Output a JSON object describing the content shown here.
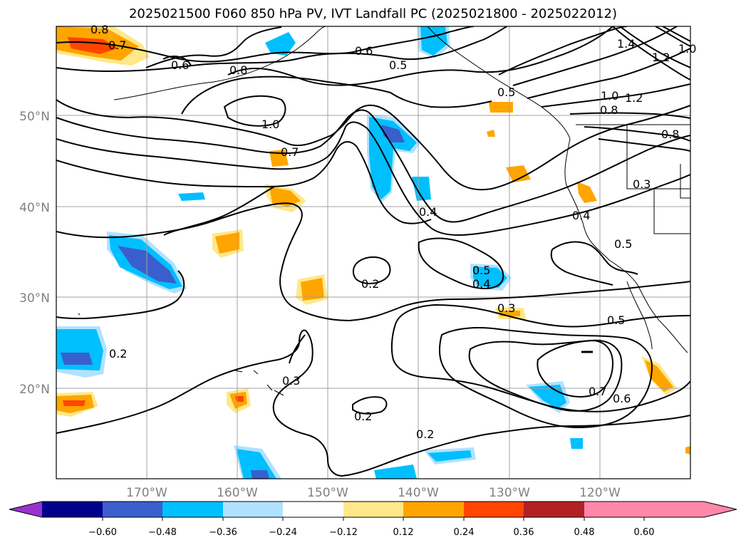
{
  "title": "2025021500 F060 850 hPa PV, IVT Landfall PC (2025021800 - 2025022012)",
  "map": {
    "latitude_ticks": [
      "50°N",
      "40°N",
      "30°N",
      "20°N"
    ],
    "longitude_ticks": [
      "170°W",
      "160°W",
      "150°W",
      "140°W",
      "130°W",
      "120°W"
    ],
    "gridlines": true,
    "coastlines": true
  },
  "contour_labels": [
    "0.8",
    "0.7",
    "0.6",
    "0.8",
    "0.6",
    "0.5",
    "1.0",
    "0.7",
    "1.0",
    "0.8",
    "1.4",
    "1.2",
    "1.0",
    "1.2",
    "0.8",
    "0.5",
    "0.3",
    "0.4",
    "0.5",
    "0.4",
    "0.5",
    "0.4",
    "0.2",
    "0.3",
    "0.5",
    "0.2",
    "0.3",
    "0.2",
    "0.2",
    "0.7",
    "0.6"
  ],
  "colorbar": {
    "ticks": [
      "−0.60",
      "−0.48",
      "−0.36",
      "−0.24",
      "−0.12",
      "0.12",
      "0.24",
      "0.36",
      "0.48",
      "0.60"
    ],
    "colors": [
      "#9932cc",
      "#00008b",
      "#3a5fcd",
      "#00bfff",
      "#b0e2ff",
      "#ffffff",
      "#ffe88a",
      "#ffa500",
      "#ff4500",
      "#b22222",
      "#ff88aa"
    ]
  },
  "shading_colors": {
    "neg_strong": "#3a5fcd",
    "neg_mid": "#00bfff",
    "neg_weak": "#b0e2ff",
    "pos_weak": "#ffe88a",
    "pos_mid": "#ffa500",
    "pos_strong": "#ff4500"
  }
}
